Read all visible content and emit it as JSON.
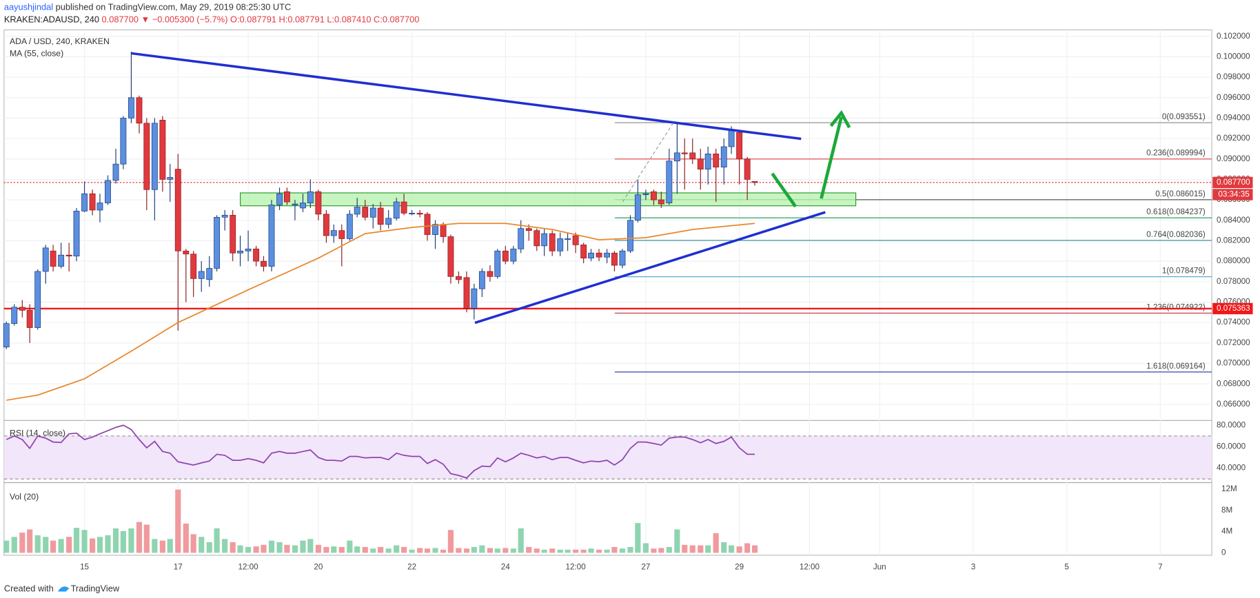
{
  "header": {
    "publisher": "aayushjindal",
    "published_text": " published on TradingView.com, May 29, 2019 08:25:30 UTC",
    "symbol": "KRAKEN:ADAUSD, 240 ",
    "quote": "0.087700 ▼ −0.005300 (−5.7%) O:0.087791 H:0.087791 L:0.087410 C:0.087700"
  },
  "chart_data": {
    "type": "candlestick",
    "title": "ADA / USD, 240, KRAKEN",
    "up_color": "#5b8fe0",
    "down_color": "#e0393e",
    "x": [
      13.33,
      13.5,
      13.67,
      13.83,
      14,
      14.17,
      14.33,
      14.5,
      14.67,
      14.83,
      15,
      15.17,
      15.33,
      15.5,
      15.67,
      15.83,
      16,
      16.17,
      16.33,
      16.5,
      16.67,
      16.83,
      17,
      17.17,
      17.33,
      17.5,
      17.67,
      17.83,
      18,
      18.17,
      18.33,
      18.5,
      18.67,
      18.83,
      19,
      19.17,
      19.33,
      19.5,
      19.67,
      19.83,
      20,
      20.17,
      20.33,
      20.5,
      20.67,
      20.83,
      21,
      21.17,
      21.33,
      21.5,
      21.67,
      21.83,
      22,
      22.17,
      22.33,
      22.5,
      22.67,
      22.83,
      23,
      23.17,
      23.33,
      23.5,
      23.67,
      23.83,
      24,
      24.17,
      24.33,
      24.5,
      24.67,
      24.83,
      25,
      25.17,
      25.33,
      25.5,
      25.67,
      25.83,
      26,
      26.17,
      26.33,
      26.5,
      26.67,
      26.83,
      27,
      27.17,
      27.33,
      27.5,
      27.67,
      27.83,
      28,
      28.17,
      28.33,
      28.5,
      28.67,
      28.83,
      29,
      29.17,
      29.33
    ],
    "open": [
      0.0716,
      0.0739,
      0.0755,
      0.0752,
      0.0735,
      0.079,
      0.081,
      0.0795,
      0.0806,
      0.0805,
      0.0849,
      0.0866,
      0.085,
      0.0857,
      0.0879,
      0.0895,
      0.094,
      0.096,
      0.0935,
      0.087,
      0.0938,
      0.088,
      0.089,
      0.081,
      0.0807,
      0.0783,
      0.0782,
      0.0793,
      0.0843,
      0.0845,
      0.0808,
      0.081,
      0.0812,
      0.08,
      0.0795,
      0.0855,
      0.0868,
      0.0855,
      0.0852,
      0.0857,
      0.0868,
      0.0846,
      0.0825,
      0.083,
      0.0822,
      0.0846,
      0.0853,
      0.0843,
      0.0852,
      0.0836,
      0.0842,
      0.0858,
      0.0847,
      0.0847,
      0.0846,
      0.0826,
      0.0836,
      0.0824,
      0.0785,
      0.0784,
      0.0754,
      0.0773,
      0.079,
      0.0785,
      0.081,
      0.08,
      0.0812,
      0.0832,
      0.083,
      0.0815,
      0.0827,
      0.081,
      0.0822,
      0.0825,
      0.0816,
      0.0803,
      0.0808,
      0.0804,
      0.0808,
      0.0796,
      0.081,
      0.084,
      0.0865,
      0.0868,
      0.086,
      0.0857,
      0.0898,
      0.0906,
      0.0906,
      0.09,
      0.089,
      0.0905,
      0.0892,
      0.0912,
      0.0926,
      0.09,
      0.0878
    ],
    "high": [
      0.0741,
      0.0758,
      0.0762,
      0.0758,
      0.0792,
      0.0816,
      0.0816,
      0.0818,
      0.0818,
      0.0852,
      0.0878,
      0.087,
      0.0866,
      0.0884,
      0.091,
      0.0942,
      0.1005,
      0.0962,
      0.094,
      0.094,
      0.0942,
      0.0895,
      0.0905,
      0.0812,
      0.081,
      0.08,
      0.0805,
      0.0845,
      0.085,
      0.085,
      0.0825,
      0.083,
      0.0815,
      0.0805,
      0.086,
      0.0872,
      0.0872,
      0.086,
      0.0866,
      0.088,
      0.087,
      0.085,
      0.0836,
      0.0836,
      0.085,
      0.0862,
      0.086,
      0.0856,
      0.0858,
      0.085,
      0.0862,
      0.0866,
      0.085,
      0.085,
      0.0848,
      0.084,
      0.0838,
      0.0826,
      0.079,
      0.079,
      0.0778,
      0.0793,
      0.0796,
      0.0812,
      0.0815,
      0.0815,
      0.084,
      0.0836,
      0.0832,
      0.0832,
      0.083,
      0.0828,
      0.0828,
      0.0828,
      0.0818,
      0.0812,
      0.0812,
      0.0812,
      0.081,
      0.0812,
      0.0845,
      0.088,
      0.087,
      0.087,
      0.0868,
      0.091,
      0.0936,
      0.092,
      0.092,
      0.091,
      0.0912,
      0.091,
      0.092,
      0.0932,
      0.0927,
      0.0902,
      0.0878
    ],
    "low": [
      0.0714,
      0.0737,
      0.0745,
      0.072,
      0.0733,
      0.0778,
      0.079,
      0.0793,
      0.079,
      0.08,
      0.0848,
      0.0845,
      0.0838,
      0.0855,
      0.0876,
      0.089,
      0.0935,
      0.0925,
      0.085,
      0.084,
      0.0868,
      0.0858,
      0.0732,
      0.076,
      0.0765,
      0.077,
      0.0775,
      0.079,
      0.083,
      0.08,
      0.0795,
      0.08,
      0.0795,
      0.079,
      0.079,
      0.085,
      0.0855,
      0.084,
      0.0848,
      0.0852,
      0.084,
      0.0818,
      0.0818,
      0.0795,
      0.082,
      0.0843,
      0.084,
      0.0832,
      0.083,
      0.0832,
      0.084,
      0.0845,
      0.0845,
      0.0843,
      0.082,
      0.0812,
      0.0818,
      0.0778,
      0.0778,
      0.075,
      0.0743,
      0.0765,
      0.078,
      0.0783,
      0.0797,
      0.0797,
      0.0808,
      0.082,
      0.081,
      0.0805,
      0.0805,
      0.0805,
      0.081,
      0.0808,
      0.0798,
      0.08,
      0.08,
      0.0798,
      0.079,
      0.0793,
      0.0808,
      0.0838,
      0.086,
      0.0855,
      0.0852,
      0.0855,
      0.0866,
      0.087,
      0.0895,
      0.087,
      0.0875,
      0.0858,
      0.0875,
      0.0905,
      0.0875,
      0.086,
      0.0874
    ],
    "close": [
      0.0739,
      0.0755,
      0.0752,
      0.0735,
      0.079,
      0.0813,
      0.0795,
      0.0806,
      0.0805,
      0.0849,
      0.0866,
      0.085,
      0.0857,
      0.0879,
      0.0895,
      0.094,
      0.096,
      0.0935,
      0.087,
      0.0935,
      0.088,
      0.0882,
      0.081,
      0.0807,
      0.0783,
      0.079,
      0.0793,
      0.0843,
      0.0845,
      0.0808,
      0.081,
      0.0812,
      0.08,
      0.0795,
      0.0855,
      0.0866,
      0.0858,
      0.0856,
      0.0857,
      0.0868,
      0.0846,
      0.0825,
      0.083,
      0.0822,
      0.0846,
      0.0853,
      0.0843,
      0.0852,
      0.0836,
      0.0842,
      0.0858,
      0.0847,
      0.0847,
      0.0846,
      0.0826,
      0.0836,
      0.0824,
      0.0785,
      0.0782,
      0.0754,
      0.0773,
      0.079,
      0.0785,
      0.081,
      0.08,
      0.0812,
      0.0832,
      0.083,
      0.0815,
      0.0827,
      0.081,
      0.0822,
      0.0822,
      0.0816,
      0.0803,
      0.0808,
      0.0804,
      0.0808,
      0.0796,
      0.081,
      0.084,
      0.0865,
      0.0866,
      0.086,
      0.0856,
      0.0898,
      0.0906,
      0.0905,
      0.09,
      0.089,
      0.0905,
      0.0892,
      0.0912,
      0.0928,
      0.09,
      0.088,
      0.0877
    ],
    "xlim": [
      13.28,
      39.1
    ],
    "ylim": [
      0.0645,
      0.10263
    ],
    "xticks": [
      15,
      17,
      {
        "value": 18.5,
        "label": "12:00"
      },
      20,
      22,
      24,
      {
        "value": 25.5,
        "label": "12:00"
      },
      27,
      29,
      {
        "value": 30.5,
        "label": "12:00"
      },
      {
        "value": 32,
        "label": "Jun"
      },
      {
        "value": 34,
        "label": "3"
      },
      {
        "value": 36,
        "label": "5"
      },
      {
        "value": 38,
        "label": "7"
      }
    ],
    "yticks": [
      {
        "value": 0.066,
        "label": "0.066000"
      },
      {
        "value": 0.068,
        "label": "0.068000"
      },
      {
        "value": 0.07,
        "label": "0.070000"
      },
      {
        "value": 0.072,
        "label": "0.072000"
      },
      {
        "value": 0.074,
        "label": "0.074000"
      },
      {
        "value": 0.076,
        "label": "0.076000"
      },
      {
        "value": 0.078,
        "label": "0.078000"
      },
      {
        "value": 0.08,
        "label": "0.080000"
      },
      {
        "value": 0.082,
        "label": "0.082000"
      },
      {
        "value": 0.084,
        "label": "0.084000"
      },
      {
        "value": 0.086,
        "label": "0.086000"
      },
      {
        "value": 0.088,
        "label": "0.088000"
      },
      {
        "value": 0.09,
        "label": "0.090000"
      },
      {
        "value": 0.092,
        "label": "0.092000"
      },
      {
        "value": 0.094,
        "label": "0.094000"
      },
      {
        "value": 0.096,
        "label": "0.096000"
      },
      {
        "value": 0.098,
        "label": "0.098000"
      },
      {
        "value": 0.1,
        "label": "0.100000"
      },
      {
        "value": 0.102,
        "label": "0.102000"
      }
    ],
    "grid": true,
    "ma": {
      "name": "MA (55, close)",
      "color": "#e8872a",
      "x": [
        13.33,
        14,
        15,
        16,
        17,
        18.5,
        20,
        21,
        22,
        23,
        24,
        25,
        26,
        27,
        28,
        29.33
      ],
      "values": [
        0.0664,
        0.0669,
        0.0685,
        0.0712,
        0.074,
        0.0772,
        0.0803,
        0.0827,
        0.0833,
        0.0837,
        0.0837,
        0.0831,
        0.0821,
        0.0823,
        0.0831,
        0.0837
      ]
    },
    "current_price": {
      "value": 0.0877,
      "label": "0.087700",
      "color": "#e0393e"
    },
    "countdown": "03:34:35",
    "support": {
      "value": 0.075363,
      "label": "0.075363",
      "color": "#f01818"
    },
    "fib": [
      {
        "value": 0.093551,
        "label": "0(0.093551)",
        "color": "#888888"
      },
      {
        "value": 0.089994,
        "label": "0.236(0.089994)",
        "color": "#e04040"
      },
      {
        "value": 0.086015,
        "label": "0.5(0.086015)",
        "color": "#555555"
      },
      {
        "value": 0.084237,
        "label": "0.618(0.084237)",
        "color": "#2ea060"
      },
      {
        "value": 0.082036,
        "label": "0.764(0.082036)",
        "color": "#2a8a9a"
      },
      {
        "value": 0.078479,
        "label": "1(0.078479)",
        "color": "#4aa0d0"
      },
      {
        "value": 0.074922,
        "label": "1.236(0.074922)",
        "color": "#c04050"
      },
      {
        "value": 0.069164,
        "label": "1.618(0.069164)",
        "color": "#2030a0"
      }
    ],
    "rsi": {
      "name": "RSI (14, close)",
      "color": "#8e44ad",
      "band": [
        30,
        70
      ],
      "ylim": [
        27.4,
        83.7
      ],
      "yticks": [
        {
          "value": 40,
          "label": "40.0000"
        },
        {
          "value": 60,
          "label": "60.0000"
        },
        {
          "value": 80,
          "label": "80.0000"
        }
      ],
      "values": [
        66.7,
        70,
        66.7,
        58.5,
        70,
        68,
        64.4,
        64,
        72,
        72.6,
        66.7,
        69,
        72,
        75,
        78,
        80,
        76,
        66.7,
        59,
        65,
        55.6,
        54,
        46,
        44.4,
        43,
        45,
        46.7,
        53,
        52,
        47.4,
        47.4,
        49,
        47.4,
        45,
        54,
        55.6,
        54,
        54,
        55.6,
        57,
        50,
        47.4,
        47.4,
        46.7,
        51,
        51,
        49.6,
        50,
        50,
        48,
        54,
        52,
        51,
        51,
        44.4,
        48,
        43.7,
        35,
        33.3,
        31,
        37.8,
        42,
        41.5,
        49.6,
        46,
        49.6,
        54,
        52,
        49.6,
        51,
        48,
        50,
        50,
        47.4,
        45,
        46.7,
        46,
        47.4,
        43,
        48,
        58.5,
        64.4,
        64.4,
        63,
        61.5,
        68,
        69,
        69,
        66.7,
        63.7,
        66.7,
        63,
        65,
        69,
        59,
        53,
        53
      ]
    },
    "volume": {
      "name": "Vol (20)",
      "up_color": "#8fd4b0",
      "down_color": "#f09a9e",
      "ylim": [
        -760000,
        13060000
      ],
      "yticks": [
        {
          "value": 0,
          "label": "0"
        },
        {
          "value": 4000000,
          "label": "4M"
        },
        {
          "value": 8000000,
          "label": "8M"
        },
        {
          "value": 12000000,
          "label": "12M"
        }
      ],
      "values": [
        2300000,
        3000000,
        3800000,
        4400000,
        3300000,
        3000000,
        2300000,
        2600000,
        3000000,
        4700000,
        4300000,
        2700000,
        3000000,
        3300000,
        4600000,
        4100000,
        4600000,
        5800000,
        5300000,
        2600000,
        2300000,
        2600000,
        11900000,
        5500000,
        3500000,
        3000000,
        2000000,
        4600000,
        2600000,
        2000000,
        1400000,
        1100000,
        1200000,
        1500000,
        2300000,
        2000000,
        1500000,
        1400000,
        2300000,
        2600000,
        1500000,
        1100000,
        1200000,
        1100000,
        2300000,
        1200000,
        1100000,
        800000,
        1100000,
        800000,
        1400000,
        1100000,
        600000,
        900000,
        800000,
        900000,
        600000,
        4300000,
        900000,
        800000,
        1100000,
        1400000,
        900000,
        800000,
        900000,
        800000,
        4600000,
        1100000,
        800000,
        600000,
        800000,
        600000,
        600000,
        600000,
        600000,
        800000,
        600000,
        600000,
        1100000,
        800000,
        1100000,
        5600000,
        1800000,
        800000,
        900000,
        1100000,
        4400000,
        1500000,
        1400000,
        1400000,
        1400000,
        3700000,
        2000000,
        1400000,
        1200000,
        1800000,
        1400000
      ]
    }
  },
  "footer": {
    "created_with": "Created with",
    "brand": "TradingView"
  }
}
